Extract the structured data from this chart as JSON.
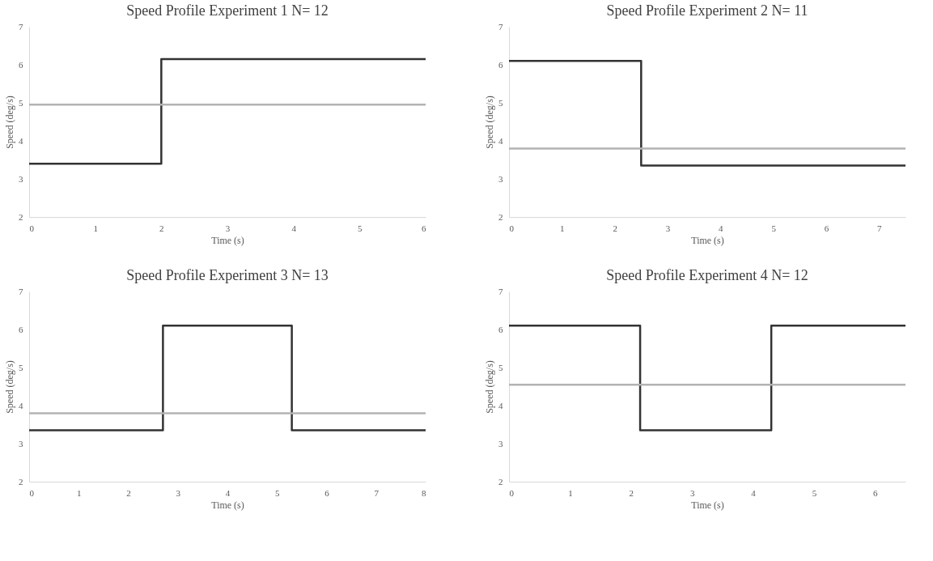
{
  "chart_data": [
    {
      "type": "step",
      "title": "Speed Profile Experiment 1 N= 12",
      "xlabel": "Time (s)",
      "ylabel": "Speed (deg/s)",
      "xlim": [
        0,
        6
      ],
      "xticks": [
        0,
        1,
        2,
        3,
        4,
        5,
        6
      ],
      "ylim": [
        2,
        7
      ],
      "yticks": [
        2,
        3,
        4,
        5,
        6,
        7
      ],
      "grid": false,
      "series": [
        {
          "color": "#333333",
          "x": [
            0,
            2,
            6
          ],
          "values": [
            3.4,
            6.15,
            6.15
          ]
        }
      ],
      "ref_lines": [
        {
          "axis": "y",
          "value": 4.95,
          "color": "#b3b3b3"
        }
      ]
    },
    {
      "type": "step",
      "title": "Speed Profile Experiment 2 N= 11",
      "xlabel": "Time (s)",
      "ylabel": "Speed (deg/s)",
      "xlim": [
        0,
        7.5
      ],
      "xticks": [
        0,
        1,
        2,
        3,
        4,
        5,
        6,
        7
      ],
      "ylim": [
        2,
        7
      ],
      "yticks": [
        2,
        3,
        4,
        5,
        6,
        7
      ],
      "grid": false,
      "series": [
        {
          "color": "#333333",
          "x": [
            0,
            2.5,
            7.5
          ],
          "values": [
            6.1,
            3.35,
            3.35
          ]
        }
      ],
      "ref_lines": [
        {
          "axis": "y",
          "value": 3.8,
          "color": "#b3b3b3"
        }
      ]
    },
    {
      "type": "step",
      "title": "Speed Profile Experiment 3 N= 13",
      "xlabel": "Time (s)",
      "ylabel": "Speed (deg/s)",
      "xlim": [
        0,
        8
      ],
      "xticks": [
        0,
        1,
        2,
        3,
        4,
        5,
        6,
        7,
        8
      ],
      "ylim": [
        2,
        7
      ],
      "yticks": [
        2,
        3,
        4,
        5,
        6,
        7
      ],
      "grid": false,
      "series": [
        {
          "color": "#333333",
          "x": [
            0,
            2.7,
            5.3,
            8
          ],
          "values": [
            3.35,
            6.1,
            3.35,
            3.35
          ]
        }
      ],
      "ref_lines": [
        {
          "axis": "y",
          "value": 3.8,
          "color": "#b3b3b3"
        }
      ]
    },
    {
      "type": "step",
      "title": "Speed Profile Experiment 4 N= 12",
      "xlabel": "Time (s)",
      "ylabel": "Speed (deg/s)",
      "xlim": [
        0,
        6.5
      ],
      "xticks": [
        0,
        1,
        2,
        3,
        4,
        5,
        6
      ],
      "ylim": [
        2,
        7
      ],
      "yticks": [
        2,
        3,
        4,
        5,
        6,
        7
      ],
      "grid": false,
      "series": [
        {
          "color": "#333333",
          "x": [
            0,
            2.15,
            4.3,
            6.5
          ],
          "values": [
            6.1,
            3.35,
            6.1,
            6.1
          ]
        }
      ],
      "ref_lines": [
        {
          "axis": "y",
          "value": 4.55,
          "color": "#b3b3b3"
        }
      ]
    }
  ]
}
